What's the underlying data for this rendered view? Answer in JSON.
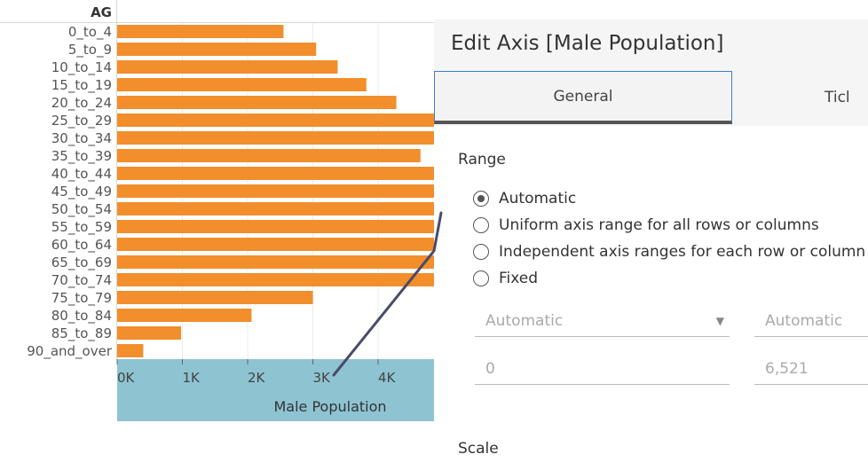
{
  "chart": {
    "header": "AG",
    "axis_title": "Male Population",
    "ticks": [
      "0K",
      "1K",
      "2K",
      "3K",
      "4K"
    ]
  },
  "chart_data": {
    "type": "bar",
    "orientation": "horizontal",
    "ylabel": "AG",
    "xlabel": "Male Population",
    "categories": [
      "0_to_4",
      "5_to_9",
      "10_to_14",
      "15_to_19",
      "20_to_24",
      "25_to_29",
      "30_to_34",
      "35_to_39",
      "40_to_44",
      "45_to_49",
      "50_to_54",
      "55_to_59",
      "60_to_64",
      "65_to_69",
      "70_to_74",
      "75_to_79",
      "80_to_84",
      "85_to_89",
      "90_and_over"
    ],
    "values": [
      2550,
      3050,
      3380,
      3820,
      4280,
      4900,
      4900,
      4650,
      4900,
      4900,
      4900,
      4900,
      4900,
      4900,
      4900,
      3000,
      2060,
      980,
      400
    ],
    "xlim": [
      0,
      4900
    ],
    "bar_color": "#f28e2b",
    "axis_band_color": "#8ec3d2"
  },
  "dialog": {
    "title": "Edit Axis [Male Population]",
    "tabs": [
      {
        "label": "General"
      },
      {
        "label": "Ticl"
      }
    ],
    "range": {
      "heading": "Range",
      "options": [
        {
          "label": "Automatic",
          "checked": true
        },
        {
          "label": "Uniform axis range for all rows or columns",
          "checked": false
        },
        {
          "label": "Independent axis ranges for each row or column",
          "checked": false
        },
        {
          "label": "Fixed",
          "checked": false
        }
      ],
      "min_select": "Automatic",
      "max_select": "Automatic",
      "min_value": "0",
      "max_value": "6,521"
    },
    "scale_heading": "Scale"
  }
}
